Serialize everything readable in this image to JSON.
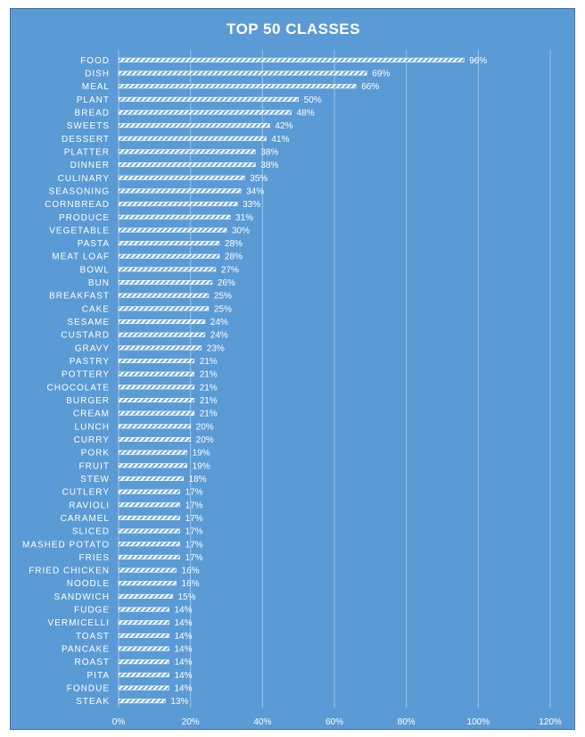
{
  "chart_data": {
    "type": "bar",
    "orientation": "horizontal",
    "title": "TOP 50 CLASSES",
    "xlabel": "",
    "ylabel": "",
    "xlim": [
      0,
      120
    ],
    "x_ticks": [
      0,
      20,
      40,
      60,
      80,
      100,
      120
    ],
    "x_tick_labels": [
      "0%",
      "20%",
      "40%",
      "60%",
      "80%",
      "100%",
      "120%"
    ],
    "grid": true,
    "legend": "none",
    "colors": {
      "background": "#5b9bd5",
      "bar": "#ffffff",
      "text": "#ffffff",
      "grid": "#9cc3e6"
    },
    "categories": [
      "FOOD",
      "DISH",
      "MEAL",
      "PLANT",
      "BREAD",
      "SWEETS",
      "DESSERT",
      "PLATTER",
      "DINNER",
      "CULINARY",
      "SEASONING",
      "CORNBREAD",
      "PRODUCE",
      "VEGETABLE",
      "PASTA",
      "MEAT LOAF",
      "BOWL",
      "BUN",
      "BREAKFAST",
      "CAKE",
      "SESAME",
      "CUSTARD",
      "GRAVY",
      "PASTRY",
      "POTTERY",
      "CHOCOLATE",
      "BURGER",
      "CREAM",
      "LUNCH",
      "CURRY",
      "PORK",
      "FRUIT",
      "STEW",
      "CUTLERY",
      "RAVIOLI",
      "CARAMEL",
      "SLICED",
      "MASHED POTATO",
      "FRIES",
      "FRIED CHICKEN",
      "NOODLE",
      "SANDWICH",
      "FUDGE",
      "VERMICELLI",
      "TOAST",
      "PANCAKE",
      "ROAST",
      "PITA",
      "FONDUE",
      "STEAK"
    ],
    "values": [
      96,
      69,
      66,
      50,
      48,
      42,
      41,
      38,
      38,
      35,
      34,
      33,
      31,
      30,
      28,
      28,
      27,
      26,
      25,
      25,
      24,
      24,
      23,
      21,
      21,
      21,
      21,
      21,
      20,
      20,
      19,
      19,
      18,
      17,
      17,
      17,
      17,
      17,
      17,
      16,
      16,
      15,
      14,
      14,
      14,
      14,
      14,
      14,
      14,
      13
    ],
    "value_labels": [
      "96%",
      "69%",
      "66%",
      "50%",
      "48%",
      "42%",
      "41%",
      "38%",
      "38%",
      "35%",
      "34%",
      "33%",
      "31%",
      "30%",
      "28%",
      "28%",
      "27%",
      "26%",
      "25%",
      "25%",
      "24%",
      "24%",
      "23%",
      "21%",
      "21%",
      "21%",
      "21%",
      "21%",
      "20%",
      "20%",
      "19%",
      "19%",
      "18%",
      "17%",
      "17%",
      "17%",
      "17%",
      "17%",
      "17%",
      "16%",
      "16%",
      "15%",
      "14%",
      "14%",
      "14%",
      "14%",
      "14%",
      "14%",
      "14%",
      "13%"
    ]
  }
}
